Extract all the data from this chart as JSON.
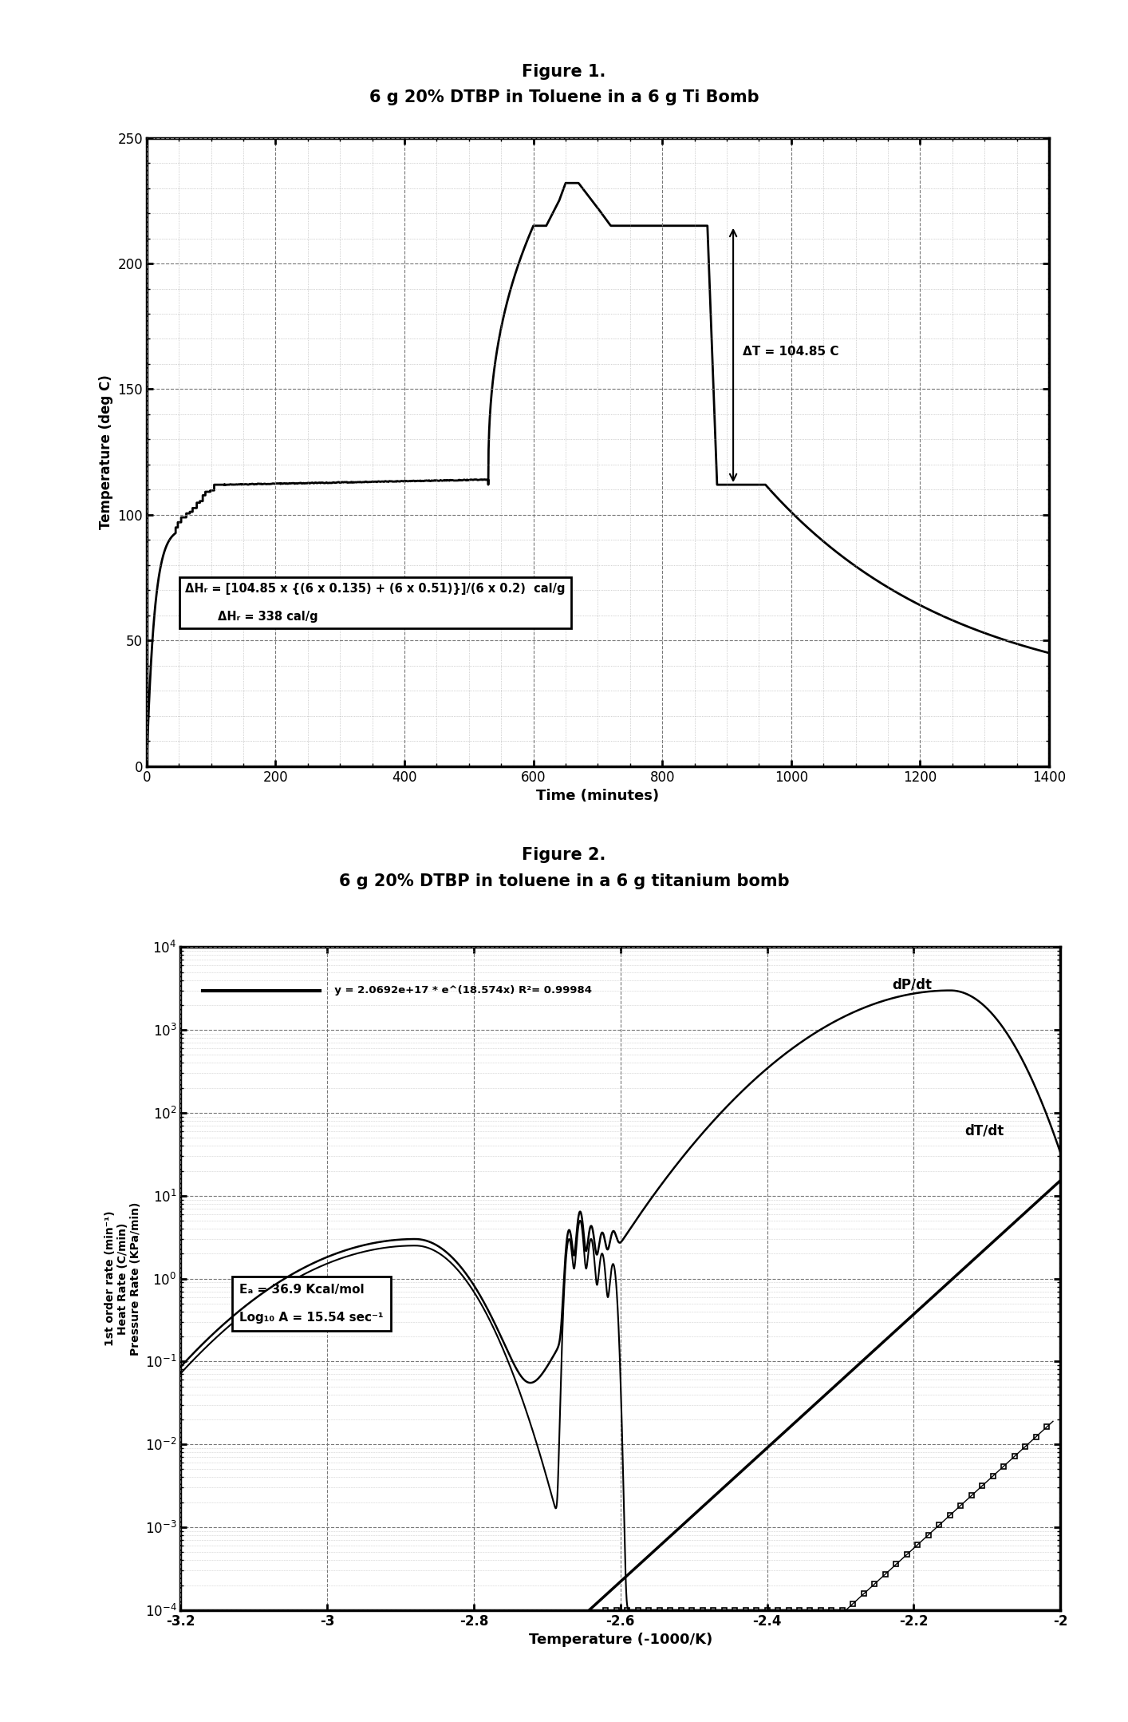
{
  "fig1_title": "Figure 1.",
  "fig1_subtitle": "6 g 20% DTBP in Toluene in a 6 g Ti Bomb",
  "fig1_xlabel": "Time (minutes)",
  "fig1_ylabel": "Temperature (deg C)",
  "fig1_xlim": [
    0,
    1400
  ],
  "fig1_ylim": [
    0,
    250
  ],
  "fig1_xticks": [
    0,
    200,
    400,
    600,
    800,
    1000,
    1200,
    1400
  ],
  "fig1_yticks": [
    0,
    50,
    100,
    150,
    200,
    250
  ],
  "fig2_title": "Figure 2.",
  "fig2_subtitle": "6 g 20% DTBP in toluene in a 6 g titanium bomb",
  "fig2_xlabel": "Temperature (-1000/K)",
  "fig2_ylabel": "1st order rate (min⁻¹)\nHeat Rate (C/min)\nPressure Rate (KPa/min)",
  "fig2_xlim": [
    -3.2,
    -2.0
  ],
  "fig2_xticks": [
    -3.2,
    -3.0,
    -2.8,
    -2.6,
    -2.4,
    -2.2,
    -2.0
  ],
  "fig2_xticklabels": [
    "-3.2",
    "-3",
    "-2.8",
    "-2.6",
    "-2.4",
    "-2.2",
    "-2"
  ],
  "annotation_dT": "ΔT = 104.85 C",
  "annotation_box_line1": "ΔHᵣ = [104.85 x {(6 x 0.135) + (6 x 0.51)}]/(6 x 0.2)  cal/g",
  "annotation_box_line2": "ΔHᵣ = 338 cal/g",
  "fig2_legend_text": "y = 2.0692e+17 * e^(18.574x) R²= 0.99984",
  "fig2_annotation_Ea": "Eₐ = 36.9 Kcal/mol",
  "fig2_annotation_logA": "Log₁₀ A = 15.54 sec⁻¹",
  "fig2_label_dPdt": "dP/dt",
  "fig2_label_dTdt": "dT/dt",
  "bg_color": "#ffffff"
}
